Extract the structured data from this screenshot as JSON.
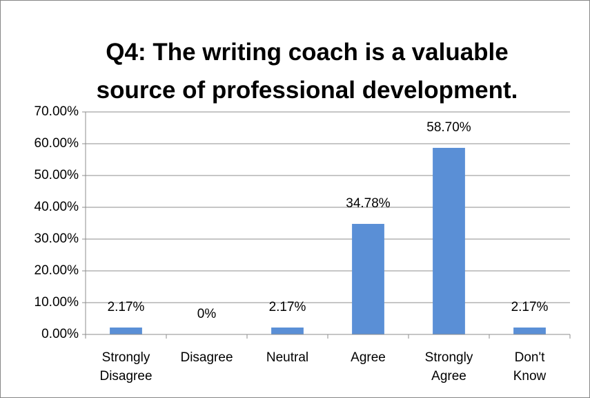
{
  "chart_data": {
    "type": "bar",
    "title": "Q4: The writing coach is a valuable\nsource of professional development.",
    "categories": [
      "Strongly Disagree",
      "Disagree",
      "Neutral",
      "Agree",
      "Strongly Agree",
      "Don't Know"
    ],
    "values": [
      2.17,
      0,
      2.17,
      34.78,
      58.7,
      2.17
    ],
    "value_labels": [
      "2.17%",
      "0%",
      "2.17%",
      "34.78%",
      "58.70%",
      "2.17%"
    ],
    "color": "#5a8fd6",
    "ylim": [
      0,
      70
    ],
    "yticks": [
      {
        "value": 0,
        "label": "0.00%"
      },
      {
        "value": 10,
        "label": "10.00%"
      },
      {
        "value": 20,
        "label": "20.00%"
      },
      {
        "value": 30,
        "label": "30.00%"
      },
      {
        "value": 40,
        "label": "40.00%"
      },
      {
        "value": 50,
        "label": "50.00%"
      },
      {
        "value": 60,
        "label": "60.00%"
      },
      {
        "value": 70,
        "label": "70.00%"
      }
    ],
    "grid": true
  }
}
